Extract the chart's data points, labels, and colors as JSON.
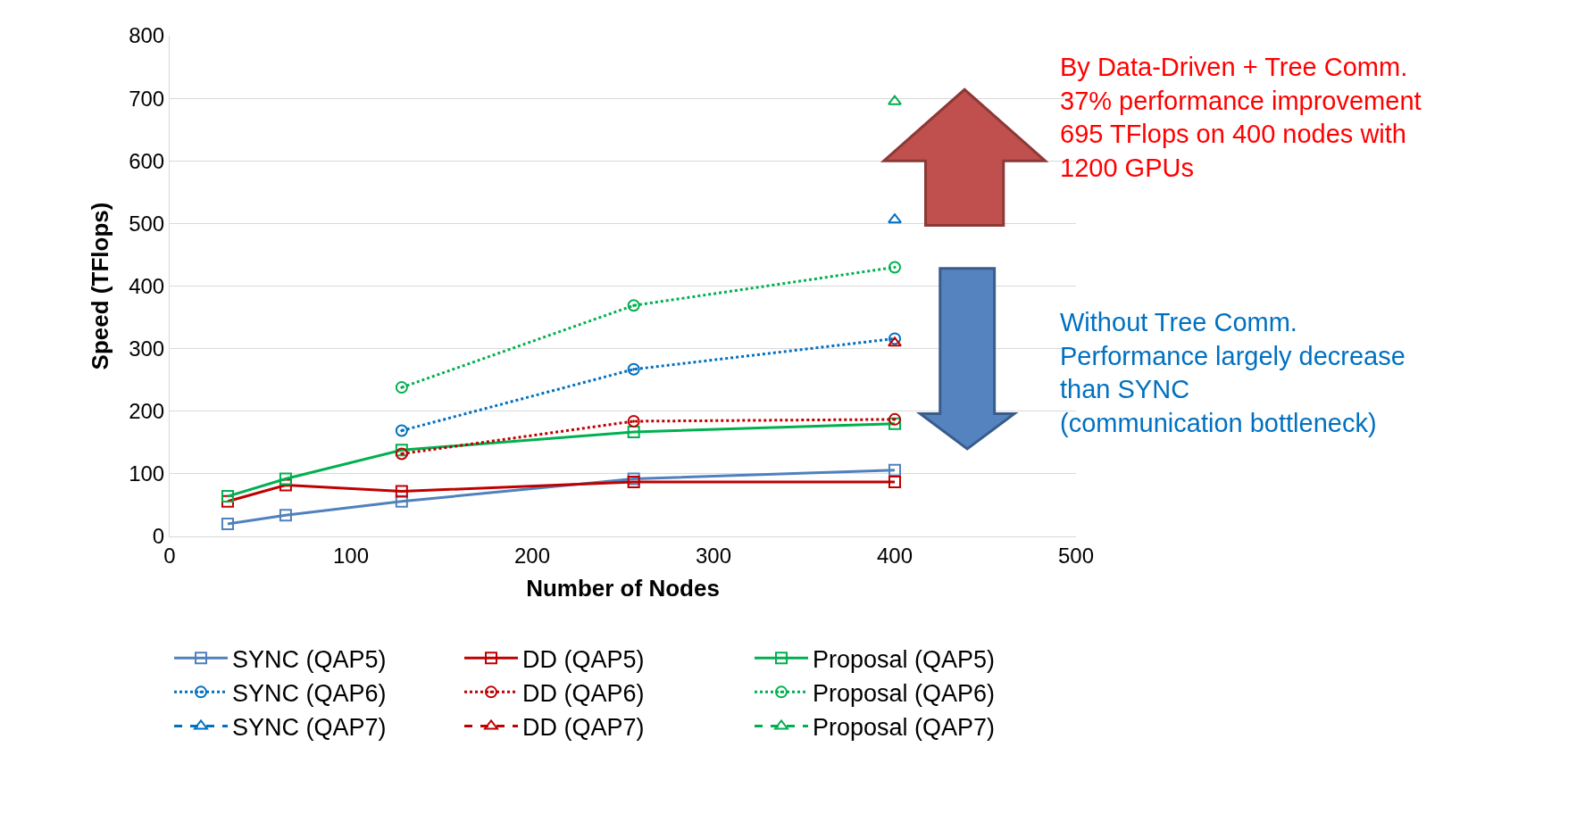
{
  "chart_data": {
    "type": "line",
    "xlabel": "Number of Nodes",
    "ylabel": "Speed (TFlops)",
    "xlim": [
      0,
      500
    ],
    "xticks": [
      0,
      100,
      200,
      300,
      400,
      500
    ],
    "ylim": [
      0,
      800
    ],
    "yticks": [
      0,
      100,
      200,
      300,
      400,
      500,
      600,
      700,
      800
    ],
    "grid": "y",
    "legend": "bottom",
    "series": [
      {
        "name": "SYNC (QAP5)",
        "color": "#4f81bd",
        "x": [
          32,
          64,
          128,
          256,
          400
        ],
        "values": [
          20,
          34,
          56,
          92,
          106
        ],
        "marker": "square",
        "line_style": "solid"
      },
      {
        "name": "DD (QAP5)",
        "color": "#c00000",
        "x": [
          32,
          64,
          128,
          256,
          400
        ],
        "values": [
          56,
          82,
          72,
          87,
          87
        ],
        "marker": "square",
        "line_style": "solid"
      },
      {
        "name": "Proposal (QAP5)",
        "color": "#00b050",
        "x": [
          32,
          64,
          128,
          256,
          400
        ],
        "values": [
          64,
          92,
          138,
          167,
          180
        ],
        "marker": "square",
        "line_style": "solid"
      },
      {
        "name": "SYNC (QAP6)",
        "color": "#0070c0",
        "x": [
          128,
          256,
          400
        ],
        "values": [
          169,
          267,
          316
        ],
        "marker": "circle",
        "line_style": "dotted"
      },
      {
        "name": "DD (QAP6)",
        "color": "#c00000",
        "x": [
          128,
          256,
          400
        ],
        "values": [
          132,
          184,
          187
        ],
        "marker": "circle",
        "line_style": "dotted"
      },
      {
        "name": "Proposal (QAP6)",
        "color": "#00b050",
        "x": [
          128,
          256,
          400
        ],
        "values": [
          238,
          369,
          430
        ],
        "marker": "circle",
        "line_style": "dotted"
      },
      {
        "name": "SYNC (QAP7)",
        "color": "#0070c0",
        "x": [
          400
        ],
        "values": [
          506
        ],
        "marker": "triangle",
        "line_style": "dashed"
      },
      {
        "name": "DD (QAP7)",
        "color": "#c00000",
        "x": [
          400
        ],
        "values": [
          309
        ],
        "marker": "triangle",
        "line_style": "dashed"
      },
      {
        "name": "Proposal (QAP7)",
        "color": "#00b050",
        "x": [
          400
        ],
        "values": [
          695
        ],
        "marker": "triangle",
        "line_style": "dashed"
      }
    ],
    "annotations": [
      "By Data-Driven + Tree Comm.\n37% performance improvement\n695 TFlops on 400 nodes with\n1200 GPUs",
      "Without Tree Comm.\nPerformance largely decrease\nthan SYNC\n(communication bottleneck)"
    ]
  }
}
